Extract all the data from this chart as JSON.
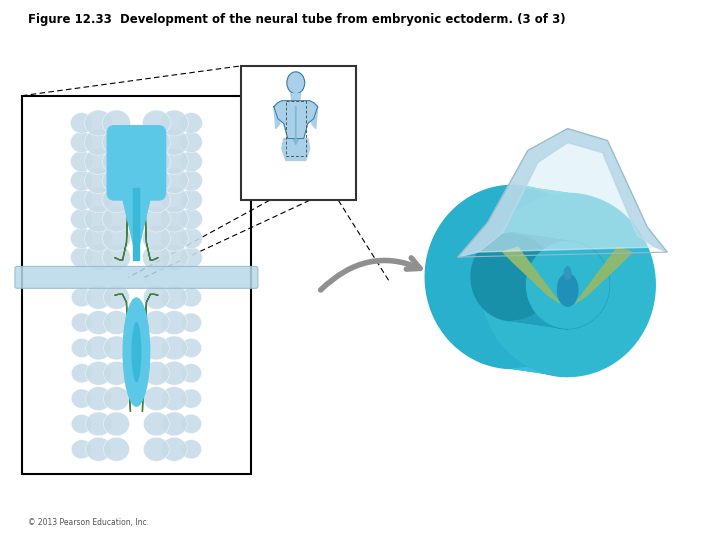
{
  "title": "Figure 12.33  Development of the neural tube from embryonic ectoderm. (3 of 3)",
  "title_fontsize": 8.5,
  "copyright": "© 2013 Pearson Education, Inc.",
  "copyright_fontsize": 5.5,
  "bg_color": "#ffffff",
  "figure_size": [
    7.2,
    5.4
  ],
  "dpi": 100,
  "colors": {
    "cell_body": "#c8dce8",
    "cell_highlight": "#e0ecf4",
    "neural_green": "#3d7a3a",
    "neural_blue_light": "#5bc8e8",
    "neural_blue_mid": "#3ab8d8",
    "neural_blue_dark": "#28a0c0",
    "plane_blue": "#b8d8e8",
    "plane_edge": "#90b8cc",
    "teal_outer": "#38c0d8",
    "teal_mid": "#28b0cc",
    "teal_inner": "#20a0be",
    "teal_dark": "#1890aa",
    "teal_face": "#30b8d0",
    "cap_light": "#b8d8e8",
    "cap_lighter": "#cce4ee",
    "cap_inner": "#d8eef6",
    "green_notochord": "#8db870",
    "green_notochord_dark": "#6a9a50",
    "arrow_gray": "#909090",
    "human_fill": "#a8d0e8",
    "human_outline": "#3878a0",
    "spine_arrow": "#80b8d0"
  }
}
